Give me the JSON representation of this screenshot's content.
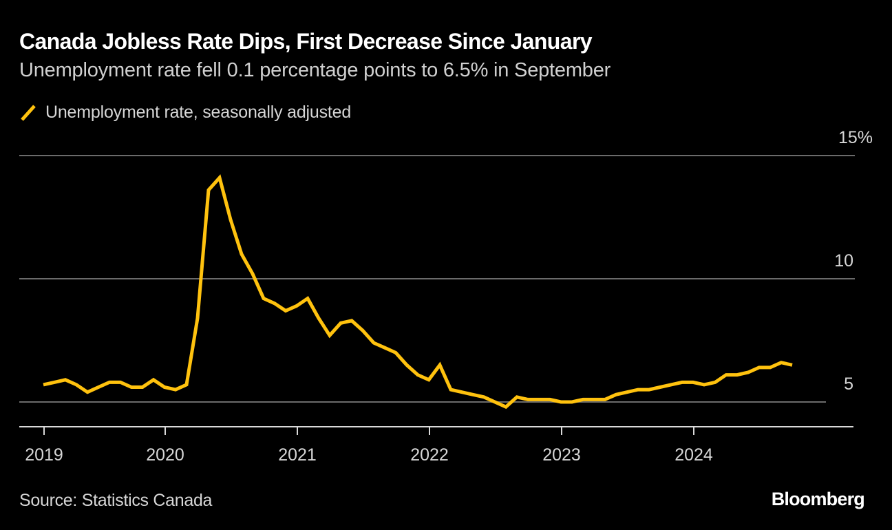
{
  "header": {
    "title": "Canada Jobless Rate Dips, First Decrease Since January",
    "subtitle": "Unemployment rate fell 0.1 percentage points to 6.5% in September"
  },
  "legend": {
    "items": [
      {
        "label": "Unemployment rate, seasonally adjusted",
        "color": "#FFC20E",
        "icon": "diagonal-line-icon"
      }
    ]
  },
  "footer": {
    "source": "Source: Statistics Canada",
    "brand": "Bloomberg"
  },
  "chart_data": {
    "type": "line",
    "title": "Canada Jobless Rate Dips, First Decrease Since January",
    "subtitle": "Unemployment rate fell 0.1 percentage points to 6.5% in September",
    "xlabel": "",
    "ylabel": "",
    "x_unit": "month",
    "x_start": "2019-01",
    "x": [
      "2019-01",
      "2019-02",
      "2019-03",
      "2019-04",
      "2019-05",
      "2019-06",
      "2019-07",
      "2019-08",
      "2019-09",
      "2019-10",
      "2019-11",
      "2019-12",
      "2020-01",
      "2020-02",
      "2020-03",
      "2020-04",
      "2020-05",
      "2020-06",
      "2020-07",
      "2020-08",
      "2020-09",
      "2020-10",
      "2020-11",
      "2020-12",
      "2021-01",
      "2021-02",
      "2021-03",
      "2021-04",
      "2021-05",
      "2021-06",
      "2021-07",
      "2021-08",
      "2021-09",
      "2021-10",
      "2021-11",
      "2021-12",
      "2022-01",
      "2022-02",
      "2022-03",
      "2022-04",
      "2022-05",
      "2022-06",
      "2022-07",
      "2022-08",
      "2022-09",
      "2022-10",
      "2022-11",
      "2022-12",
      "2023-01",
      "2023-02",
      "2023-03",
      "2023-04",
      "2023-05",
      "2023-06",
      "2023-07",
      "2023-08",
      "2023-09",
      "2023-10",
      "2023-11",
      "2023-12",
      "2024-01",
      "2024-02",
      "2024-03",
      "2024-04",
      "2024-05",
      "2024-06",
      "2024-07",
      "2024-08",
      "2024-09"
    ],
    "series": [
      {
        "name": "Unemployment rate, seasonally adjusted",
        "color": "#FFC20E",
        "values": [
          5.7,
          5.8,
          5.9,
          5.7,
          5.4,
          5.6,
          5.8,
          5.8,
          5.6,
          5.6,
          5.9,
          5.6,
          5.5,
          5.7,
          8.4,
          13.6,
          14.1,
          12.4,
          11.0,
          10.2,
          9.2,
          9.0,
          8.7,
          8.9,
          9.2,
          8.4,
          7.7,
          8.2,
          8.3,
          7.9,
          7.4,
          7.2,
          7.0,
          6.5,
          6.1,
          5.9,
          6.5,
          5.5,
          5.4,
          5.3,
          5.2,
          5.0,
          4.8,
          5.2,
          5.1,
          5.1,
          5.1,
          5.0,
          5.0,
          5.1,
          5.1,
          5.1,
          5.3,
          5.4,
          5.5,
          5.5,
          5.6,
          5.7,
          5.8,
          5.8,
          5.7,
          5.8,
          6.1,
          6.1,
          6.2,
          6.4,
          6.4,
          6.6,
          6.5
        ]
      }
    ],
    "y_ticks": [
      {
        "value": 5,
        "label": "5"
      },
      {
        "value": 10,
        "label": "10"
      },
      {
        "value": 15,
        "label": "15%"
      }
    ],
    "x_ticks": [
      {
        "month_index": 0,
        "label": "2019"
      },
      {
        "month_index": 11,
        "label": "2020"
      },
      {
        "month_index": 23,
        "label": "2021"
      },
      {
        "month_index": 35,
        "label": "2022"
      },
      {
        "month_index": 47,
        "label": "2023"
      },
      {
        "month_index": 59,
        "label": "2024"
      }
    ],
    "ylim": [
      4,
      15
    ],
    "grid": true,
    "legend_position": "top-left",
    "y_axis_position": "right"
  }
}
